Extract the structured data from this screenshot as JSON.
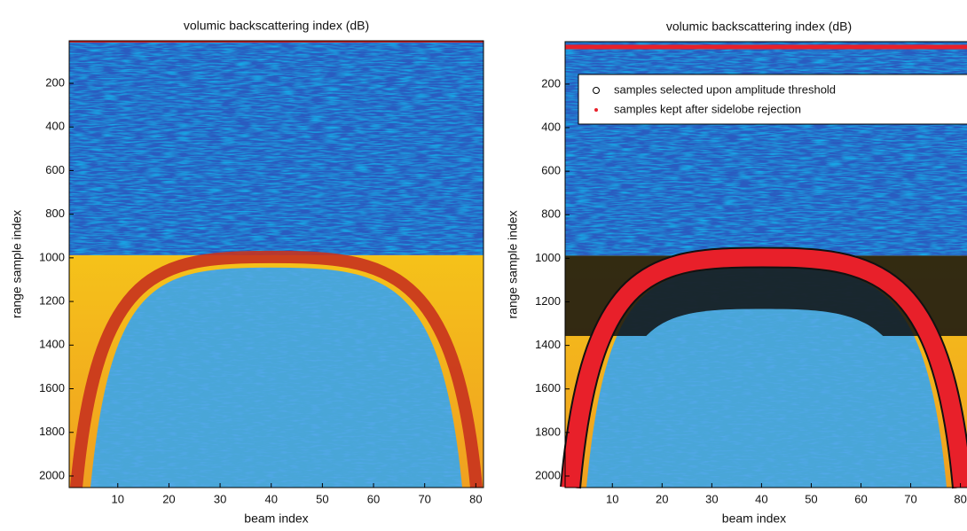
{
  "chart_data": [
    {
      "type": "heatmap",
      "title": "volumic backscattering index (dB)",
      "x_label": "beam index",
      "y_label": "range sample index",
      "xlim": [
        0.5,
        81.5
      ],
      "xticks": [
        10,
        20,
        30,
        40,
        50,
        60,
        70,
        80
      ],
      "ylim": [
        5,
        2053
      ],
      "yticks": [
        200,
        400,
        600,
        800,
        1000,
        1200,
        1400,
        1600,
        1800,
        2000
      ],
      "y_inverted": true
    },
    {
      "type": "heatmap",
      "title": "volumic backscattering index (dB)",
      "x_label": "beam index",
      "y_label": "range sample index",
      "xlim": [
        0.5,
        81.5
      ],
      "xticks": [
        10,
        20,
        30,
        40,
        50,
        60,
        70,
        80
      ],
      "ylim": [
        5,
        2053
      ],
      "yticks": [
        200,
        400,
        600,
        800,
        1000,
        1200,
        1400,
        1600,
        1800,
        2000
      ],
      "y_inverted": true,
      "legend": [
        {
          "name": "samples selected upon amplitude threshold",
          "color": "#000000",
          "marker": "circle"
        },
        {
          "name": "samples kept after sidelobe rejection",
          "color": "#e8202a",
          "marker": "dot"
        }
      ]
    }
  ]
}
